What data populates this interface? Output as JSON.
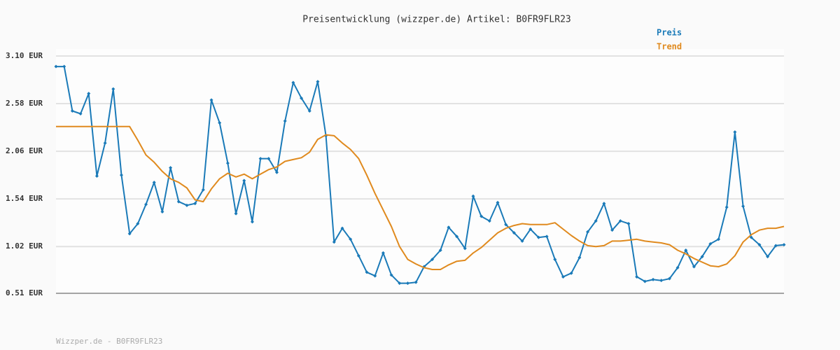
{
  "chart_data": {
    "type": "line",
    "title": "Preisentwicklung (wizzper.de) Artikel: B0FR9FLR23",
    "footer": "Wizzper.de - B0FR9FLR23",
    "ylim": [
      0.51,
      3.1
    ],
    "yticks": [
      {
        "value": 0.51,
        "label": "0.51 EUR"
      },
      {
        "value": 1.02,
        "label": "1.02 EUR"
      },
      {
        "value": 1.54,
        "label": "1.54 EUR"
      },
      {
        "value": 2.06,
        "label": "2.06 EUR"
      },
      {
        "value": 2.58,
        "label": "2.58 EUR"
      },
      {
        "value": 3.1,
        "label": "3.10 EUR"
      }
    ],
    "grid": true,
    "legend": "top-right",
    "series": [
      {
        "name": "Preis",
        "color": "#1a7ab8",
        "markers": true,
        "values": [
          2.985,
          2.985,
          2.5,
          2.47,
          2.69,
          1.79,
          2.15,
          2.74,
          1.8,
          1.16,
          1.27,
          1.48,
          1.72,
          1.4,
          1.88,
          1.51,
          1.47,
          1.49,
          1.64,
          2.62,
          2.37,
          1.93,
          1.38,
          1.74,
          1.29,
          1.98,
          1.98,
          1.83,
          2.39,
          2.81,
          2.64,
          2.5,
          2.82,
          2.23,
          1.07,
          1.22,
          1.1,
          0.92,
          0.74,
          0.7,
          0.95,
          0.71,
          0.62,
          0.62,
          0.63,
          0.8,
          0.88,
          0.98,
          1.23,
          1.13,
          1.0,
          1.57,
          1.35,
          1.3,
          1.5,
          1.26,
          1.17,
          1.08,
          1.21,
          1.12,
          1.13,
          0.88,
          0.69,
          0.73,
          0.9,
          1.18,
          1.3,
          1.49,
          1.2,
          1.3,
          1.27,
          0.69,
          0.64,
          0.66,
          0.65,
          0.67,
          0.79,
          0.98,
          0.8,
          0.91,
          1.05,
          1.1,
          1.45,
          2.27,
          1.46,
          1.12,
          1.04,
          0.91,
          1.03,
          1.04
        ]
      },
      {
        "name": "Trend",
        "color": "#e08a1e",
        "markers": false,
        "values": [
          2.33,
          2.33,
          2.33,
          2.33,
          2.33,
          2.33,
          2.33,
          2.33,
          2.33,
          2.33,
          2.18,
          2.02,
          1.94,
          1.84,
          1.76,
          1.72,
          1.66,
          1.53,
          1.51,
          1.65,
          1.76,
          1.82,
          1.78,
          1.81,
          1.76,
          1.81,
          1.86,
          1.89,
          1.95,
          1.97,
          1.99,
          2.05,
          2.19,
          2.24,
          2.23,
          2.15,
          2.08,
          1.98,
          1.8,
          1.6,
          1.42,
          1.24,
          1.02,
          0.88,
          0.83,
          0.79,
          0.77,
          0.77,
          0.82,
          0.86,
          0.87,
          0.95,
          1.01,
          1.09,
          1.17,
          1.22,
          1.25,
          1.27,
          1.26,
          1.26,
          1.26,
          1.28,
          1.21,
          1.14,
          1.08,
          1.03,
          1.02,
          1.03,
          1.08,
          1.08,
          1.09,
          1.1,
          1.08,
          1.07,
          1.06,
          1.04,
          0.98,
          0.94,
          0.89,
          0.85,
          0.81,
          0.8,
          0.83,
          0.92,
          1.07,
          1.15,
          1.2,
          1.22,
          1.22,
          1.24
        ]
      }
    ]
  }
}
